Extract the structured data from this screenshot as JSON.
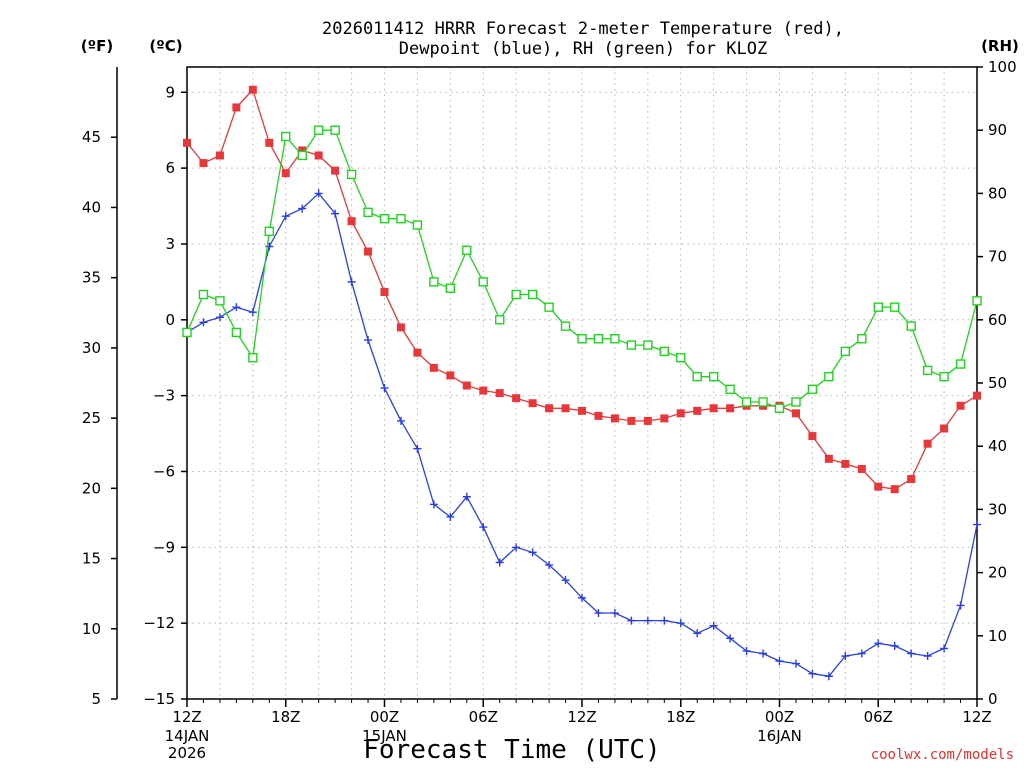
{
  "chart_data": {
    "type": "line",
    "title_line1": "2026011412 HRRR Forecast 2-meter Temperature (red),",
    "title_line2": "Dewpoint (blue), RH (green) for KLOZ",
    "xlabel": "Forecast Time (UTC)",
    "unit_f": "(ºF)",
    "unit_c": "(ºC)",
    "unit_rh": "(RH)",
    "credit": "coolwx.com/models",
    "grid": true,
    "x_hours_from_start": [
      0,
      48
    ],
    "x_ticks": [
      {
        "h": 0,
        "label": "12Z"
      },
      {
        "h": 6,
        "label": "18Z"
      },
      {
        "h": 12,
        "label": "00Z"
      },
      {
        "h": 18,
        "label": "06Z"
      },
      {
        "h": 24,
        "label": "12Z"
      },
      {
        "h": 30,
        "label": "18Z"
      },
      {
        "h": 36,
        "label": "00Z"
      },
      {
        "h": 42,
        "label": "06Z"
      },
      {
        "h": 48,
        "label": "12Z"
      }
    ],
    "date_labels": [
      {
        "h": 0,
        "lines": [
          "14JAN",
          "2026"
        ]
      },
      {
        "h": 12,
        "lines": [
          "15JAN"
        ]
      },
      {
        "h": 36,
        "lines": [
          "16JAN"
        ]
      }
    ],
    "y_left_c": {
      "range": [
        -15,
        10
      ],
      "ticks": [
        9,
        6,
        3,
        0,
        -3,
        -6,
        -9,
        -12,
        -15
      ],
      "labels": [
        "9",
        "6",
        "3",
        "0",
        "−3",
        "−6",
        "−9",
        "−12",
        "−15"
      ]
    },
    "y_left_f": {
      "range": [
        5,
        50
      ],
      "ticks": [
        5,
        10,
        15,
        20,
        25,
        30,
        35,
        40,
        45
      ]
    },
    "y_right_rh": {
      "range": [
        0,
        100
      ],
      "ticks": [
        0,
        10,
        20,
        30,
        40,
        50,
        60,
        70,
        80,
        90,
        100
      ]
    },
    "series": [
      {
        "name": "Temperature (°C)",
        "color": "#e8373a",
        "marker": "filled-square",
        "axis": "celsius",
        "values": [
          7.0,
          6.2,
          6.5,
          8.4,
          9.1,
          7.0,
          5.8,
          6.7,
          6.5,
          5.9,
          3.9,
          2.7,
          1.1,
          -0.3,
          -1.3,
          -1.9,
          -2.2,
          -2.6,
          -2.8,
          -2.9,
          -3.1,
          -3.3,
          -3.5,
          -3.5,
          -3.6,
          -3.8,
          -3.9,
          -4.0,
          -4.0,
          -3.9,
          -3.7,
          -3.6,
          -3.5,
          -3.5,
          -3.4,
          -3.4,
          -3.4,
          -3.7,
          -4.6,
          -5.5,
          -5.7,
          -5.9,
          -6.6,
          -6.7,
          -6.3,
          -4.9,
          -4.3,
          -3.4,
          -3.0
        ]
      },
      {
        "name": "Dewpoint (°C)",
        "color": "#2b3fe0",
        "marker": "plus",
        "axis": "celsius",
        "values": [
          -0.5,
          -0.1,
          0.1,
          0.5,
          0.3,
          2.9,
          4.1,
          4.4,
          5.0,
          4.2,
          1.5,
          -0.8,
          -2.7,
          -4.0,
          -5.1,
          -7.3,
          -7.8,
          -7.0,
          -8.2,
          -9.6,
          -9.0,
          -9.2,
          -9.7,
          -10.3,
          -11.0,
          -11.6,
          -11.6,
          -11.9,
          -11.9,
          -11.9,
          -12.0,
          -12.4,
          -12.1,
          -12.6,
          -13.1,
          -13.2,
          -13.5,
          -13.6,
          -14.0,
          -14.1,
          -13.3,
          -13.2,
          -12.8,
          -12.9,
          -13.2,
          -13.3,
          -13.0,
          -11.3,
          -8.1
        ]
      },
      {
        "name": "Relative Humidity (%)",
        "color": "#1fd41f",
        "marker": "open-square",
        "axis": "rh",
        "values": [
          58,
          64,
          63,
          58,
          54,
          74,
          89,
          86,
          90,
          90,
          83,
          77,
          76,
          76,
          75,
          66,
          65,
          71,
          66,
          60,
          64,
          64,
          62,
          59,
          57,
          57,
          57,
          56,
          56,
          55,
          54,
          51,
          51,
          49,
          47,
          47,
          46,
          47,
          49,
          51,
          55,
          57,
          62,
          62,
          59,
          52,
          51,
          53,
          63
        ]
      }
    ]
  }
}
